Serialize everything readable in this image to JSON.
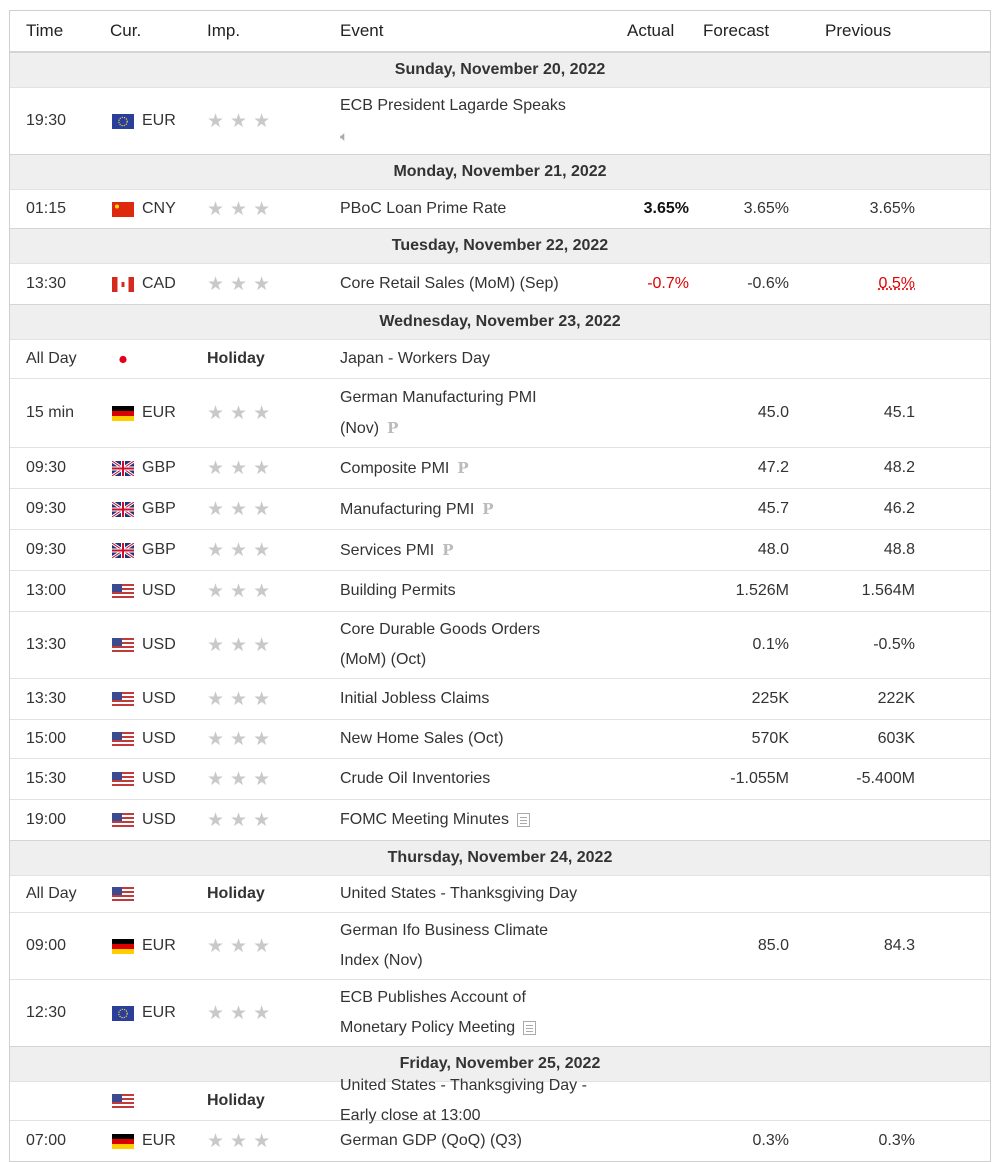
{
  "header": {
    "time": "Time",
    "cur": "Cur.",
    "imp": "Imp.",
    "event": "Event",
    "actual": "Actual",
    "forecast": "Forecast",
    "previous": "Previous"
  },
  "days": [
    {
      "date": "Sunday, November 20, 2022",
      "events": [
        {
          "time": "19:30",
          "flag": "eu",
          "cur": "EUR",
          "imp": "stars",
          "event": [
            "ECB President Lagarde Speaks"
          ],
          "icon": "speaker",
          "actual": "",
          "forecast": "",
          "previous": "",
          "h": 66
        }
      ]
    },
    {
      "date": "Monday, November 21, 2022",
      "events": [
        {
          "time": "01:15",
          "flag": "cn",
          "cur": "CNY",
          "imp": "stars",
          "event": [
            "PBoC Loan Prime Rate"
          ],
          "icon": "",
          "actual": "3.65%",
          "actualStyle": "bold",
          "forecast": "3.65%",
          "previous": "3.65%",
          "h": 38
        }
      ]
    },
    {
      "date": "Tuesday, November 22, 2022",
      "events": [
        {
          "time": "13:30",
          "flag": "ca",
          "cur": "CAD",
          "imp": "stars",
          "event": [
            "Core Retail Sales (MoM) (Sep)"
          ],
          "icon": "",
          "actual": "-0.7%",
          "actualStyle": "red",
          "forecast": "-0.6%",
          "previous": "0.5%",
          "previousStyle": "prev-red",
          "h": 40
        }
      ]
    },
    {
      "date": "Wednesday, November 23, 2022",
      "events": [
        {
          "time": "All Day",
          "flag": "jp",
          "cur": "",
          "imp": "Holiday",
          "event": [
            "Japan - Workers Day"
          ],
          "icon": "",
          "actual": "",
          "forecast": "",
          "previous": "",
          "h": 38
        },
        {
          "time": "15 min",
          "flag": "de",
          "cur": "EUR",
          "imp": "stars",
          "event": [
            "German Manufacturing PMI",
            "(Nov)"
          ],
          "icon": "p",
          "actual": "",
          "forecast": "45.0",
          "previous": "45.1",
          "h": 68
        },
        {
          "time": "09:30",
          "flag": "gb",
          "cur": "GBP",
          "imp": "stars",
          "event": [
            "Composite PMI"
          ],
          "icon": "p",
          "actual": "",
          "forecast": "47.2",
          "previous": "48.2",
          "h": 40
        },
        {
          "time": "09:30",
          "flag": "gb",
          "cur": "GBP",
          "imp": "stars",
          "event": [
            "Manufacturing PMI"
          ],
          "icon": "p",
          "actual": "",
          "forecast": "45.7",
          "previous": "46.2",
          "h": 40
        },
        {
          "time": "09:30",
          "flag": "gb",
          "cur": "GBP",
          "imp": "stars",
          "event": [
            "Services PMI"
          ],
          "icon": "p",
          "actual": "",
          "forecast": "48.0",
          "previous": "48.8",
          "h": 40
        },
        {
          "time": "13:00",
          "flag": "us",
          "cur": "USD",
          "imp": "stars",
          "event": [
            "Building Permits"
          ],
          "icon": "",
          "actual": "",
          "forecast": "1.526M",
          "previous": "1.564M",
          "h": 40
        },
        {
          "time": "13:30",
          "flag": "us",
          "cur": "USD",
          "imp": "stars",
          "event": [
            "Core Durable Goods Orders",
            "(MoM) (Oct)"
          ],
          "icon": "",
          "actual": "",
          "forecast": "0.1%",
          "previous": "-0.5%",
          "h": 66
        },
        {
          "time": "13:30",
          "flag": "us",
          "cur": "USD",
          "imp": "stars",
          "event": [
            "Initial Jobless Claims"
          ],
          "icon": "",
          "actual": "",
          "forecast": "225K",
          "previous": "222K",
          "h": 40
        },
        {
          "time": "15:00",
          "flag": "us",
          "cur": "USD",
          "imp": "stars",
          "event": [
            "New Home Sales (Oct)"
          ],
          "icon": "",
          "actual": "",
          "forecast": "570K",
          "previous": "603K",
          "h": 38
        },
        {
          "time": "15:30",
          "flag": "us",
          "cur": "USD",
          "imp": "stars",
          "event": [
            "Crude Oil Inventories"
          ],
          "icon": "",
          "actual": "",
          "forecast": "-1.055M",
          "previous": "-5.400M",
          "h": 40
        },
        {
          "time": "19:00",
          "flag": "us",
          "cur": "USD",
          "imp": "stars",
          "event": [
            "FOMC Meeting Minutes"
          ],
          "icon": "doc",
          "actual": "",
          "forecast": "",
          "previous": "",
          "h": 40
        }
      ]
    },
    {
      "date": "Thursday, November 24, 2022",
      "events": [
        {
          "time": "All Day",
          "flag": "us",
          "cur": "",
          "imp": "Holiday",
          "event": [
            "United States - Thanksgiving Day"
          ],
          "icon": "",
          "actual": "",
          "forecast": "",
          "previous": "",
          "h": 36
        },
        {
          "time": "09:00",
          "flag": "de",
          "cur": "EUR",
          "imp": "stars",
          "event": [
            "German Ifo Business Climate",
            "Index (Nov)"
          ],
          "icon": "",
          "actual": "",
          "forecast": "85.0",
          "previous": "84.3",
          "h": 66
        },
        {
          "time": "12:30",
          "flag": "eu",
          "cur": "EUR",
          "imp": "stars",
          "event": [
            "ECB Publishes Account of",
            "Monetary Policy Meeting"
          ],
          "icon": "doc",
          "actual": "",
          "forecast": "",
          "previous": "",
          "h": 66
        }
      ]
    },
    {
      "date": "Friday, November 25, 2022",
      "events": [
        {
          "time": "",
          "flag": "us",
          "cur": "",
          "imp": "Holiday",
          "event": [
            "United States - Thanksgiving Day - Early close at 13:00"
          ],
          "icon": "",
          "actual": "",
          "forecast": "",
          "previous": "",
          "h": 38
        },
        {
          "time": "07:00",
          "flag": "de",
          "cur": "EUR",
          "imp": "stars",
          "event": [
            "German GDP (QoQ) (Q3)"
          ],
          "icon": "",
          "actual": "",
          "forecast": "0.3%",
          "previous": "0.3%",
          "h": 40
        }
      ]
    }
  ]
}
